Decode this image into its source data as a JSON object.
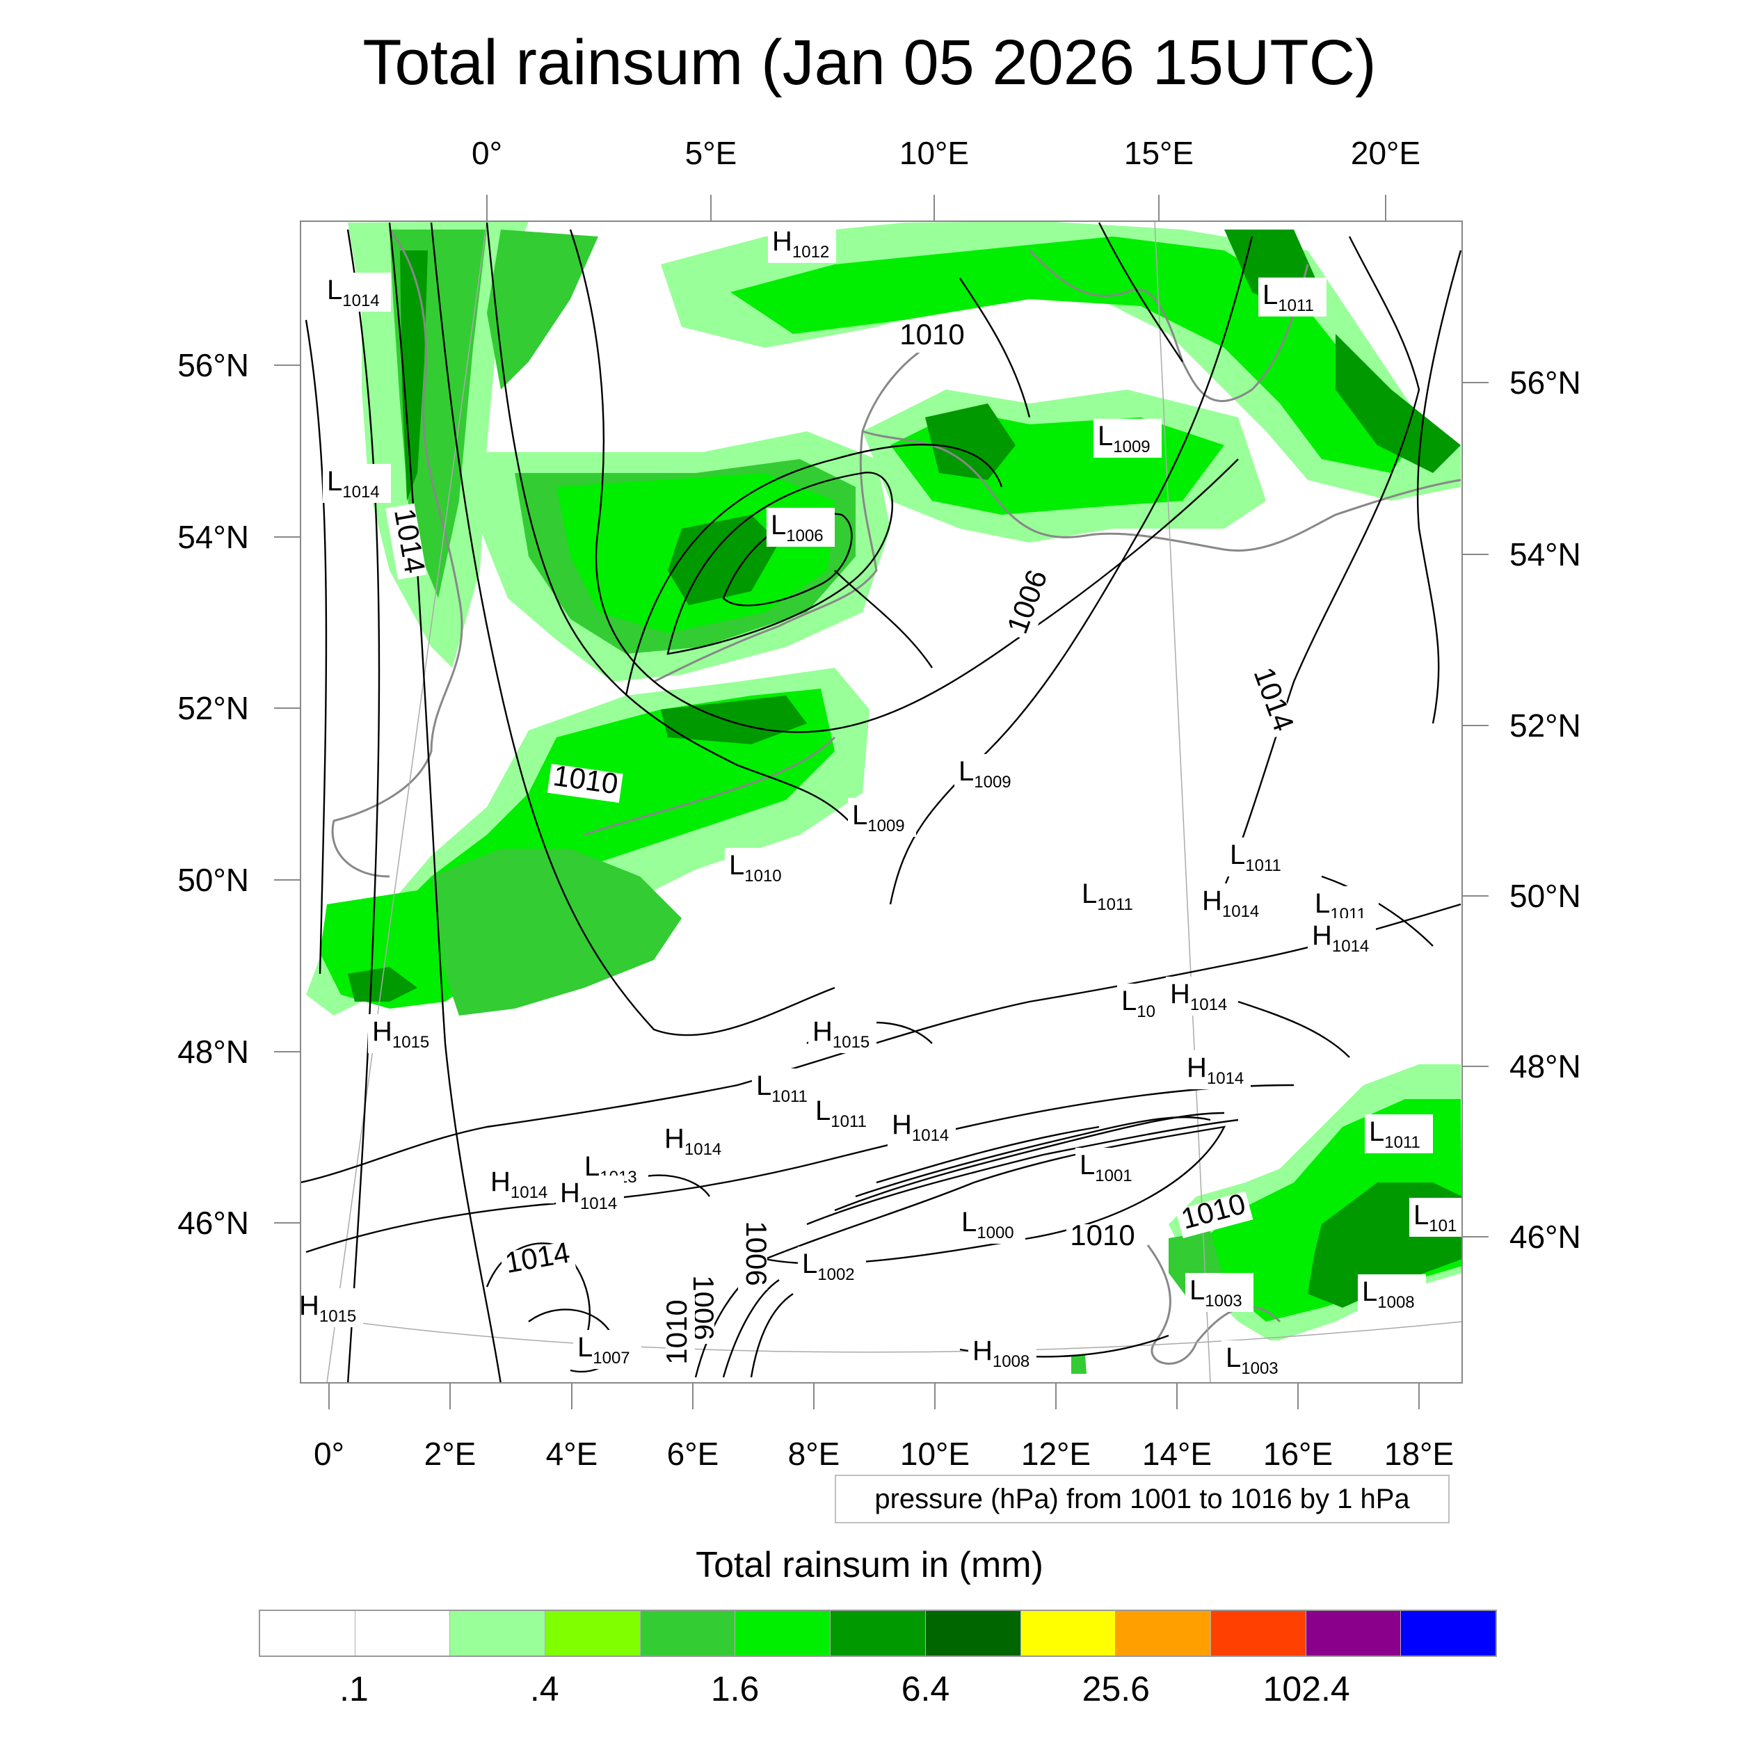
{
  "title": "Total rainsum (Jan 05 2026 15UTC)",
  "axes": {
    "top_lon_ticks": [
      "0°",
      "5°E",
      "10°E",
      "15°E",
      "20°E"
    ],
    "bottom_lon_ticks": [
      "0°",
      "2°E",
      "4°E",
      "6°E",
      "8°E",
      "10°E",
      "12°E",
      "14°E",
      "16°E",
      "18°E"
    ],
    "left_lat_ticks": [
      "56°N",
      "54°N",
      "52°N",
      "50°N",
      "48°N",
      "46°N"
    ],
    "right_lat_ticks": [
      "56°N",
      "54°N",
      "52°N",
      "50°N",
      "48°N",
      "46°N"
    ]
  },
  "contour_info": "pressure (hPa) from 1001 to 1016 by 1 hPa",
  "pressure_centers": [
    {
      "type": "H",
      "value": "1012"
    },
    {
      "type": "L",
      "value": "1014"
    },
    {
      "type": "L",
      "value": "1011"
    },
    {
      "type": "L",
      "value": "1009"
    },
    {
      "type": "L",
      "value": "1014"
    },
    {
      "type": "L",
      "value": "1006"
    },
    {
      "type": "L",
      "value": "1009"
    },
    {
      "type": "L",
      "value": "1009"
    },
    {
      "type": "L",
      "value": "1010"
    },
    {
      "type": "L",
      "value": "1011"
    },
    {
      "type": "L",
      "value": "1011"
    },
    {
      "type": "H",
      "value": "1014"
    },
    {
      "type": "L",
      "value": "1011"
    },
    {
      "type": "H",
      "value": "1014"
    },
    {
      "type": "H",
      "value": "1014"
    },
    {
      "type": "L",
      "value": "10"
    },
    {
      "type": "H",
      "value": "1014"
    },
    {
      "type": "H",
      "value": "1015"
    },
    {
      "type": "H",
      "value": "1015"
    },
    {
      "type": "L",
      "value": "1011"
    },
    {
      "type": "L",
      "value": "1011"
    },
    {
      "type": "H",
      "value": "1014"
    },
    {
      "type": "H",
      "value": "1014"
    },
    {
      "type": "L",
      "value": "1011"
    },
    {
      "type": "L",
      "value": "1001"
    },
    {
      "type": "L",
      "value": "101"
    },
    {
      "type": "L",
      "value": "1013"
    },
    {
      "type": "H",
      "value": "1014"
    },
    {
      "type": "H",
      "value": "1014"
    },
    {
      "type": "L",
      "value": "1000"
    },
    {
      "type": "L",
      "value": "1002"
    },
    {
      "type": "L",
      "value": "1003"
    },
    {
      "type": "L",
      "value": "1008"
    },
    {
      "type": "H",
      "value": "1015"
    },
    {
      "type": "L",
      "value": "1007"
    },
    {
      "type": "H",
      "value": "1008"
    },
    {
      "type": "L",
      "value": "1003"
    }
  ],
  "contour_value_labels": [
    "1010",
    "1010",
    "1010",
    "1014",
    "1014",
    "1014",
    "1006",
    "1010",
    "1006",
    "1006",
    "1010"
  ],
  "legend": {
    "title": "Total rainsum in (mm)",
    "colors": [
      "#ffffff",
      "#ffffff",
      "#99ff99",
      "#80ff00",
      "#33cc33",
      "#00ee00",
      "#009900",
      "#006600",
      "#ffff00",
      "#ffa000",
      "#ff4000",
      "#8b008b",
      "#0000ff"
    ],
    "labels": [
      ".1",
      ".4",
      "1.6",
      "6.4",
      "25.6",
      "102.4"
    ]
  },
  "precip_colors": {
    "light": "#99ff99",
    "mid": "#33cc33",
    "bright": "#00ee00",
    "dark": "#009900",
    "darker": "#006600"
  }
}
